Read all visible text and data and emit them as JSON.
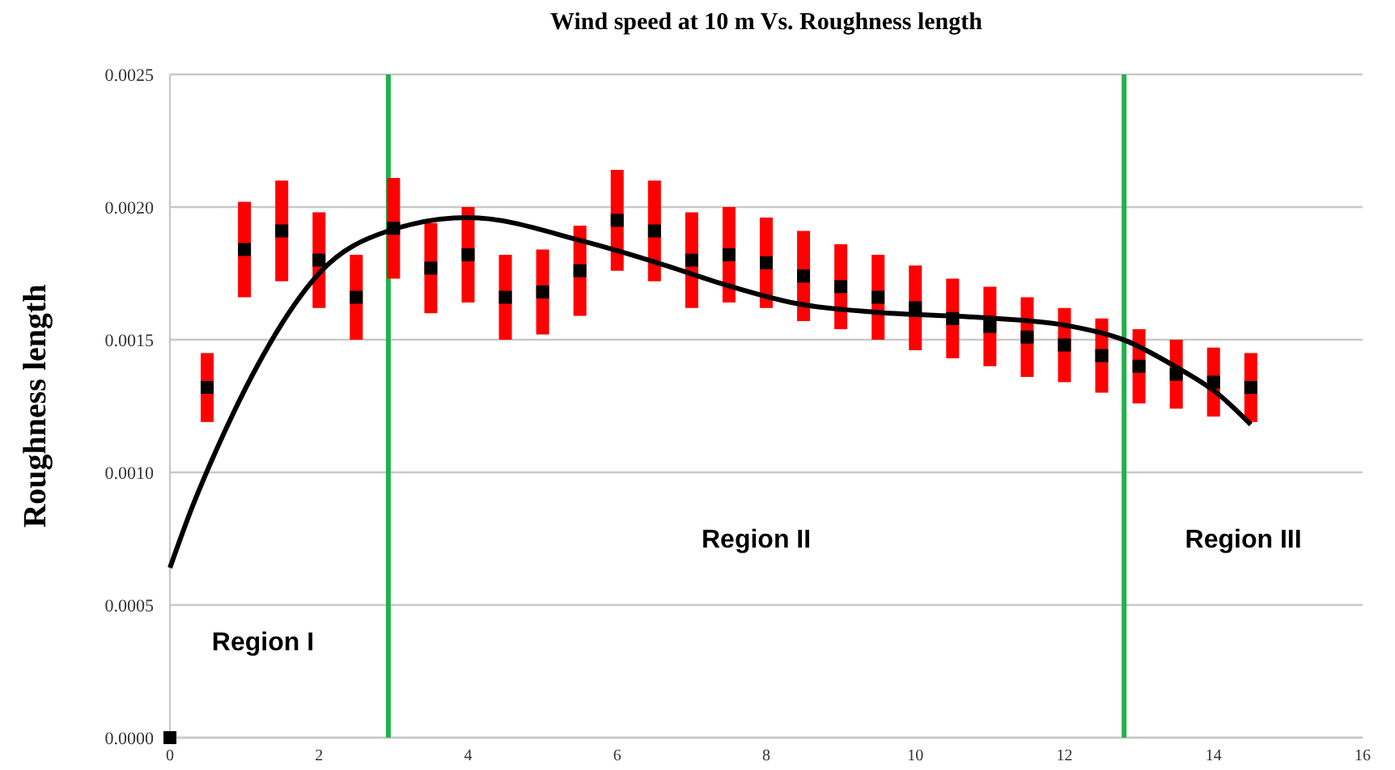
{
  "chart_data": {
    "type": "scatter",
    "title": "Wind speed at 10 m Vs. Roughness length",
    "ylabel": "Roughness length",
    "xlim": [
      0,
      16
    ],
    "xticks": [
      0,
      2,
      4,
      6,
      8,
      10,
      12,
      14,
      16
    ],
    "ylim": [
      0,
      0.0025
    ],
    "yticks": [
      {
        "value": 0,
        "label": "0.0000"
      },
      {
        "value": 0.0005,
        "label": "0.0005"
      },
      {
        "value": 0.001,
        "label": "0.0010"
      },
      {
        "value": 0.0015,
        "label": "0.0015"
      },
      {
        "value": 0.002,
        "label": "0.0020"
      },
      {
        "value": 0.0025,
        "label": "0.0025"
      }
    ],
    "grid": "y",
    "series": [
      {
        "color": "#000000",
        "marker": "square",
        "x": [
          0,
          0.5,
          1,
          1.5,
          2,
          2.5,
          3,
          3.5,
          4,
          4.5,
          5,
          5.5,
          6,
          6.5,
          7,
          7.5,
          8,
          8.5,
          9,
          9.5,
          10,
          10.5,
          11,
          11.5,
          12,
          12.5,
          13,
          13.5,
          14,
          14.5
        ],
        "values": [
          0,
          0.00132,
          0.00184,
          0.00191,
          0.0018,
          0.00166,
          0.00192,
          0.00177,
          0.00182,
          0.00166,
          0.00168,
          0.00176,
          0.00195,
          0.00191,
          0.0018,
          0.00182,
          0.00179,
          0.00174,
          0.0017,
          0.00166,
          0.00162,
          0.00158,
          0.00155,
          0.00151,
          0.00148,
          0.00144,
          0.0014,
          0.00137,
          0.00134,
          0.00132
        ],
        "errors": [
          null,
          0.00013,
          0.00018,
          0.00019,
          0.00018,
          0.00016,
          0.00019,
          0.00017,
          0.00018,
          0.00016,
          0.00016,
          0.00017,
          0.00019,
          0.00019,
          0.00018,
          0.00018,
          0.00017,
          0.00017,
          0.00016,
          0.00016,
          0.00016,
          0.00015,
          0.00015,
          0.00015,
          0.00014,
          0.00014,
          0.00014,
          0.00013,
          0.00013,
          0.00013
        ]
      },
      {
        "type": "line",
        "color": "#000000",
        "marker": "none",
        "line_style": "solid",
        "x": [
          0,
          0.3,
          0.6,
          1.17,
          1.5,
          2,
          2.93,
          4,
          5.56,
          6.69,
          7.3,
          8.45,
          9.5,
          10.93,
          12.06,
          12.78,
          13.48,
          14.05,
          14.5
        ],
        "values": [
          0.00064,
          0.00087,
          0.00107,
          0.0014,
          0.00156,
          0.00175,
          0.00191,
          0.00196,
          0.00187,
          0.001776,
          0.00172,
          0.001634,
          0.001603,
          0.001583,
          0.001552,
          0.001501,
          0.0014,
          0.001298,
          0.00118
        ]
      }
    ],
    "ref_lines": [
      {
        "axis": "x",
        "value": 2.93,
        "color": "#22b14c"
      },
      {
        "axis": "x",
        "value": 12.8,
        "color": "#22b14c"
      }
    ],
    "annotations": [
      "Region I",
      "Region II",
      "Region III"
    ]
  }
}
